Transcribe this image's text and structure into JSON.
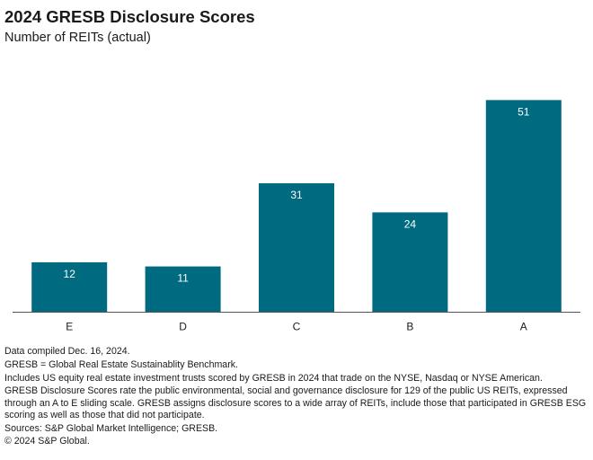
{
  "chart_data": {
    "type": "bar",
    "title": "2024 GRESB Disclosure Scores",
    "subtitle": "Number of REITs (actual)",
    "categories": [
      "E",
      "D",
      "C",
      "B",
      "A"
    ],
    "values": [
      12,
      11,
      31,
      24,
      51
    ],
    "data_labels": [
      "12",
      "11",
      "31",
      "24",
      "51"
    ],
    "ylim": [
      0,
      55
    ],
    "grid": false,
    "legend": "none",
    "bar_color": "#006a80",
    "label_color": "#ffffff",
    "axis_color": "#555555"
  },
  "notes": [
    "Data compiled Dec. 16, 2024.",
    "GRESB = Global Real Estate Sustainablity Benchmark.",
    "Includes US equity real estate investment trusts scored by GRESB in 2024 that trade on the NYSE, Nasdaq or NYSE American.",
    "GRESB Disclosure Scores rate the public environmental, social and governance disclosure for 129 of the public US REITs, expressed through an A to E sliding scale. GRESB assigns disclosure scores to a wide array of REITs, include those that participated in GRESB ESG scoring as well as those that did not participate.",
    "Sources: S&P Global Market Intelligence; GRESB.",
    "© 2024 S&P Global."
  ]
}
